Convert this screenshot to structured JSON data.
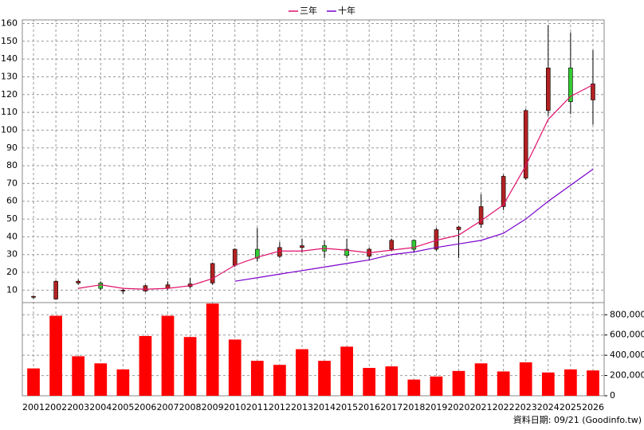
{
  "chart_data": {
    "type": "candlestick",
    "categories": [
      "2001",
      "2002",
      "2003",
      "2004",
      "2005",
      "2006",
      "2007",
      "2008",
      "2009",
      "2010",
      "2011",
      "2012",
      "2013",
      "2014",
      "2015",
      "2016",
      "2017",
      "2018",
      "2019",
      "2020",
      "2021",
      "2022",
      "2023",
      "2024",
      "2025",
      "2026"
    ],
    "open": [
      6,
      5,
      14,
      14,
      9.5,
      9.5,
      11,
      12,
      14,
      24,
      33,
      29,
      34,
      35,
      33,
      29,
      33,
      38,
      33,
      44,
      47,
      57,
      73,
      111,
      135,
      117
    ],
    "close": [
      6.5,
      15,
      15,
      11,
      10,
      12.5,
      13,
      13.5,
      25,
      33,
      28,
      34,
      35,
      32,
      29.5,
      33,
      38,
      33,
      44,
      45.5,
      57,
      74,
      111,
      135,
      116,
      126
    ],
    "high": [
      7,
      15.5,
      16,
      15,
      10.5,
      13,
      15,
      17,
      25.5,
      33.5,
      45,
      37,
      39,
      38,
      39,
      34,
      39,
      38.5,
      45,
      46,
      64,
      75,
      112,
      159,
      155,
      145
    ],
    "low": [
      5,
      4.5,
      13,
      10,
      8,
      9,
      10,
      11,
      13,
      23,
      26,
      28,
      31,
      28,
      28,
      27,
      32,
      31,
      32,
      28,
      45,
      55,
      72,
      108,
      109,
      103
    ],
    "up_color": "#b22222",
    "down_color": "#33cc33",
    "ylim": [
      3,
      162
    ],
    "yticks": [
      10,
      20,
      30,
      40,
      50,
      60,
      70,
      80,
      90,
      100,
      110,
      120,
      130,
      140,
      150,
      160
    ],
    "grid": true,
    "series": [
      {
        "name": "三年",
        "color": "#e0106a",
        "values": [
          null,
          null,
          11,
          13,
          11,
          10.5,
          11,
          12.5,
          16.5,
          24,
          28.5,
          32,
          32,
          33.5,
          32.5,
          31,
          32.5,
          34,
          38,
          41,
          49,
          58,
          80,
          106,
          119,
          125.5
        ]
      },
      {
        "name": "十年",
        "color": "#7a00cc",
        "values": [
          null,
          null,
          null,
          null,
          null,
          null,
          null,
          null,
          null,
          15,
          17,
          19,
          21,
          23,
          25,
          27,
          30,
          31.5,
          34,
          36,
          38,
          42,
          50,
          60,
          69,
          78
        ]
      }
    ],
    "volume": {
      "color": "#ff0000",
      "values": [
        270000,
        790000,
        390000,
        320000,
        260000,
        590000,
        790000,
        580000,
        910000,
        555000,
        345000,
        305000,
        460000,
        345000,
        485000,
        275000,
        290000,
        160000,
        190000,
        245000,
        320000,
        240000,
        330000,
        230000,
        260000,
        250000
      ],
      "ylim": [
        0,
        920000
      ],
      "yticks": [
        0,
        {
          "value": 200000,
          "label": "200,000"
        },
        {
          "value": 400000,
          "label": "400,000"
        },
        {
          "value": 600000,
          "label": "600,000"
        },
        {
          "value": 800000,
          "label": "800,000"
        }
      ]
    },
    "note": "資料日期: 09/21 (Goodinfo.tw)"
  }
}
